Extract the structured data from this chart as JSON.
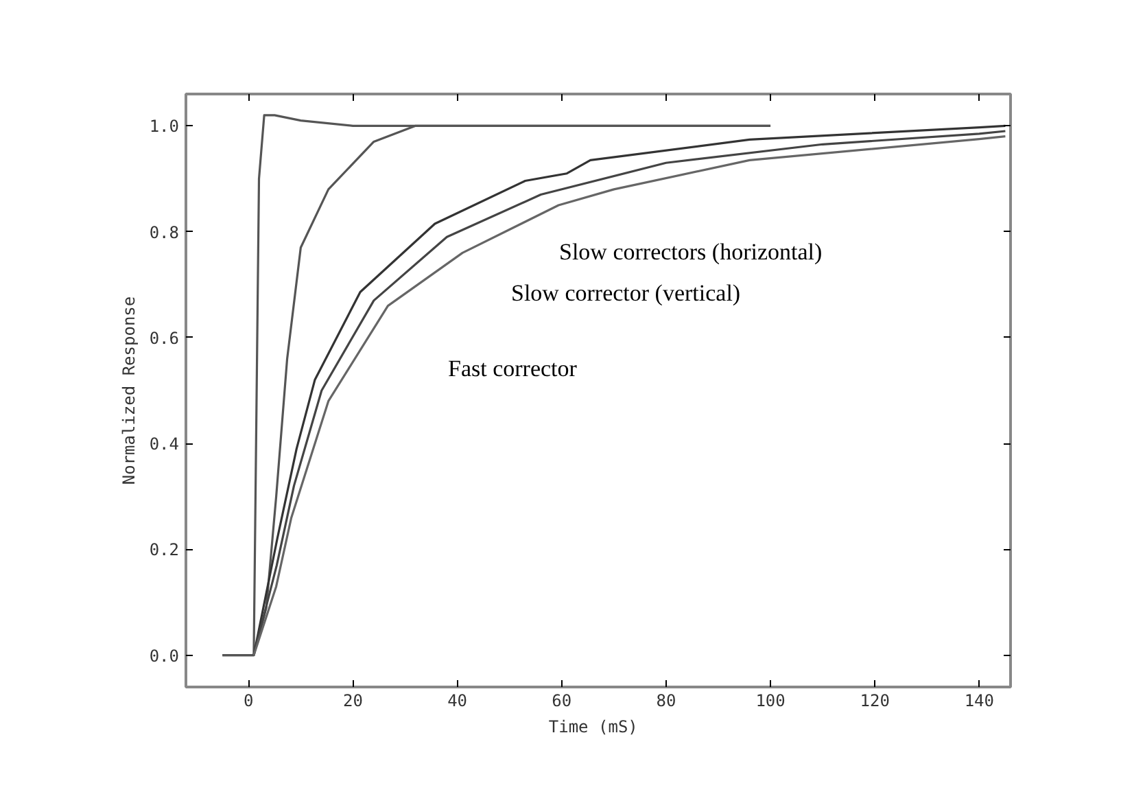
{
  "chart_data": {
    "type": "line",
    "xlabel": "Time  (mS)",
    "ylabel": "Normalized Response",
    "xlim": [
      -12,
      146
    ],
    "ylim": [
      -0.06,
      1.06
    ],
    "xticks": [
      0,
      20,
      40,
      60,
      80,
      100,
      120,
      140
    ],
    "yticks": [
      {
        "value": 0,
        "label": "0.0"
      },
      {
        "value": 0.2,
        "label": "0.2"
      },
      {
        "value": 0.4,
        "label": "0.4"
      },
      {
        "value": 0.6,
        "label": "0.6"
      },
      {
        "value": 0.8,
        "label": "0.8"
      },
      {
        "value": 1.0,
        "label": "1.0"
      }
    ],
    "grid": false,
    "marker": "none",
    "line_style": "solid",
    "series": [
      {
        "color": "#555555",
        "x": [
          -5,
          1,
          2,
          3,
          5,
          10,
          20,
          30,
          50,
          70,
          100
        ],
        "values": [
          0,
          0,
          0.9,
          1.02,
          1.02,
          1.01,
          1.0,
          1.0,
          1.0,
          1.0,
          1.0
        ]
      },
      {
        "color": "#555555",
        "x": [
          -5,
          1,
          3.4,
          5.3,
          7.4,
          10,
          15.3,
          24,
          32,
          50,
          70,
          100
        ],
        "values": [
          0,
          0,
          0.09,
          0.3,
          0.56,
          0.77,
          0.88,
          0.97,
          1.0,
          1.0,
          1.0,
          1.0
        ]
      },
      {
        "color": "#333333",
        "x": [
          1,
          5.5,
          9.2,
          12.7,
          21.4,
          35.7,
          53,
          61,
          65.5,
          96,
          140,
          145
        ],
        "values": [
          0,
          0.22,
          0.39,
          0.52,
          0.686,
          0.815,
          0.896,
          0.91,
          0.935,
          0.974,
          0.997,
          1.0
        ]
      },
      {
        "color": "#444444",
        "x": [
          1,
          5.4,
          8.7,
          14,
          24,
          38,
          56,
          80,
          110,
          140,
          145
        ],
        "values": [
          0,
          0.17,
          0.32,
          0.5,
          0.67,
          0.79,
          0.87,
          0.93,
          0.965,
          0.985,
          0.99
        ]
      },
      {
        "color": "#666666",
        "x": [
          1,
          5.3,
          8.2,
          15.3,
          26.7,
          41,
          59.4,
          70,
          96,
          140,
          145
        ],
        "values": [
          0,
          0.13,
          0.26,
          0.48,
          0.66,
          0.76,
          0.85,
          0.88,
          0.935,
          0.975,
          0.98
        ]
      }
    ],
    "annotations": [
      "Slow correctors (horizontal)",
      "Slow corrector (vertical)",
      "Fast corrector"
    ]
  }
}
